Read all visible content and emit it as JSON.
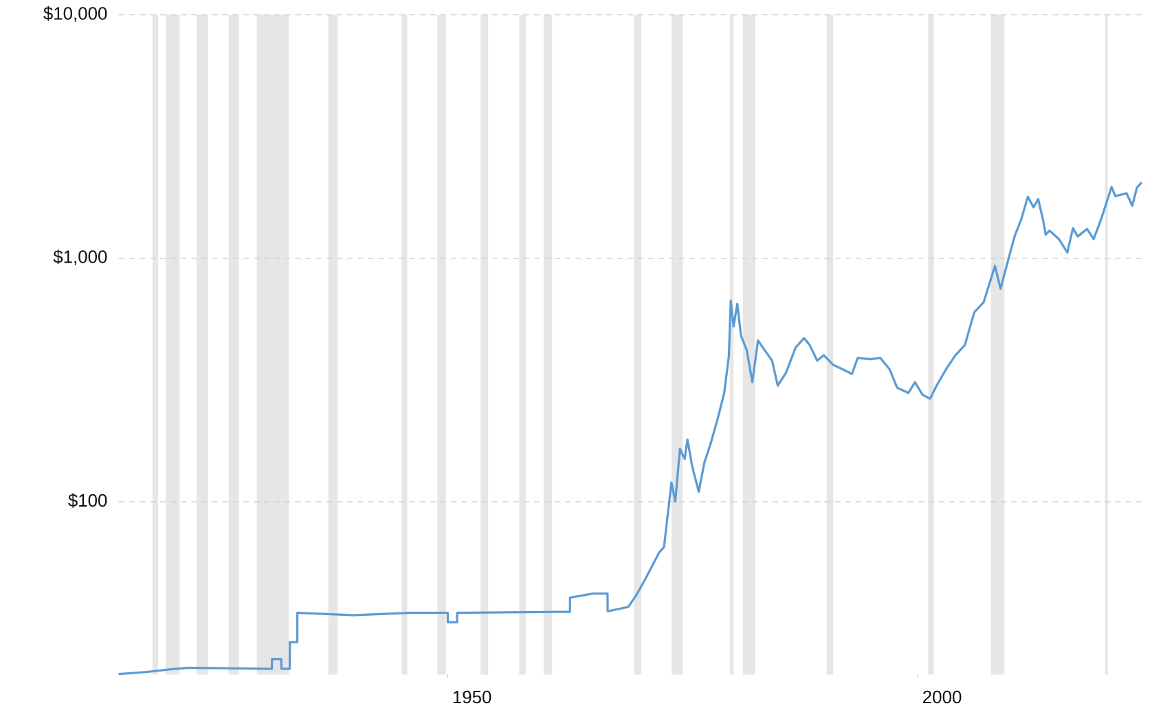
{
  "chart_data": {
    "type": "line",
    "log_scale": true,
    "grid": true,
    "xlim": [
      1915,
      2023.8
    ],
    "xticks": [
      1950,
      2000
    ],
    "ylim": [
      19.5,
      10000
    ],
    "yticks": [
      {
        "value": 100,
        "label": "$100"
      },
      {
        "value": 1000,
        "label": "$1,000"
      },
      {
        "value": 10000,
        "label": "$10,000"
      }
    ],
    "recession_color": "#e6e6e6",
    "recessions": [
      [
        1918.6,
        1919.2
      ],
      [
        1920.0,
        1921.5
      ],
      [
        1923.3,
        1924.5
      ],
      [
        1926.7,
        1927.8
      ],
      [
        1929.7,
        1933.1
      ],
      [
        1937.3,
        1938.3
      ],
      [
        1945.1,
        1945.7
      ],
      [
        1948.9,
        1949.8
      ],
      [
        1953.5,
        1954.3
      ],
      [
        1957.6,
        1958.3
      ],
      [
        1960.2,
        1961.1
      ],
      [
        1969.8,
        1970.6
      ],
      [
        1973.8,
        1975.0
      ],
      [
        1980.0,
        1980.4
      ],
      [
        1981.4,
        1982.7
      ],
      [
        1990.3,
        1991.0
      ],
      [
        2001.1,
        2001.7
      ],
      [
        2007.8,
        2009.2
      ],
      [
        2019.9,
        2020.2
      ]
    ],
    "x": [
      1915.0,
      1918.0,
      1920.5,
      1922.5,
      1931.3,
      1931.31,
      1932.3,
      1932.31,
      1933.2,
      1933.21,
      1934.0,
      1934.01,
      1940.0,
      1946.0,
      1950.0,
      1950.01,
      1951.0,
      1951.01,
      1962.0,
      1963.0,
      1963.01,
      1965.5,
      1967.0,
      1967.01,
      1969.2,
      1970.0,
      1971.0,
      1972.5,
      1973.0,
      1973.8,
      1974.2,
      1974.7,
      1975.2,
      1975.5,
      1976.0,
      1976.7,
      1977.3,
      1978.0,
      1978.8,
      1979.4,
      1979.9,
      1980.1,
      1980.4,
      1980.8,
      1981.2,
      1981.8,
      1982.4,
      1983.0,
      1983.7,
      1984.5,
      1985.1,
      1986.0,
      1987.0,
      1987.9,
      1988.5,
      1989.3,
      1990.0,
      1991.0,
      1992.0,
      1993.0,
      1993.6,
      1995.0,
      1996.0,
      1997.0,
      1997.8,
      1999.0,
      1999.7,
      2000.5,
      2001.3,
      2002.0,
      2003.0,
      2004.0,
      2005.0,
      2006.0,
      2007.0,
      2008.2,
      2008.8,
      2009.5,
      2010.3,
      2011.0,
      2011.7,
      2012.3,
      2012.8,
      2013.3,
      2013.6,
      2014.0,
      2015.0,
      2015.9,
      2016.5,
      2017.0,
      2018.0,
      2018.7,
      2019.5,
      2020.6,
      2021.0,
      2022.2,
      2022.8,
      2023.3,
      2023.8
    ],
    "series": [
      {
        "color": "#5b9bd5",
        "values": [
          19.6,
          20.0,
          20.5,
          20.8,
          20.6,
          22.6,
          22.6,
          20.6,
          20.6,
          26.5,
          26.5,
          35.0,
          34.2,
          35.0,
          35.0,
          32.0,
          32.0,
          35.0,
          35.3,
          35.3,
          40.4,
          42.0,
          42.0,
          35.5,
          37.0,
          41.0,
          48.0,
          62.0,
          65.0,
          120.0,
          100.0,
          165.0,
          150.0,
          180.0,
          140.0,
          110.0,
          145.0,
          175.0,
          226.0,
          279.0,
          396.0,
          670.0,
          525.0,
          650.0,
          480.0,
          420.0,
          310.0,
          460.0,
          420.0,
          380.0,
          300.0,
          340.0,
          430.0,
          470.0,
          440.0,
          380.0,
          400.0,
          365.0,
          350.0,
          335.0,
          390.0,
          385.0,
          390.0,
          350.0,
          294.0,
          280.0,
          310.0,
          275.0,
          265.0,
          300.0,
          350.0,
          400.0,
          440.0,
          600.0,
          660.0,
          930.0,
          750.0,
          950.0,
          1234.0,
          1446.0,
          1790.0,
          1620.0,
          1750.0,
          1450.0,
          1250.0,
          1300.0,
          1200.0,
          1057.0,
          1330.0,
          1230.0,
          1320.0,
          1200.0,
          1450.0,
          1963.0,
          1800.0,
          1850.0,
          1644.0,
          1950.0,
          2050.0
        ]
      }
    ]
  }
}
